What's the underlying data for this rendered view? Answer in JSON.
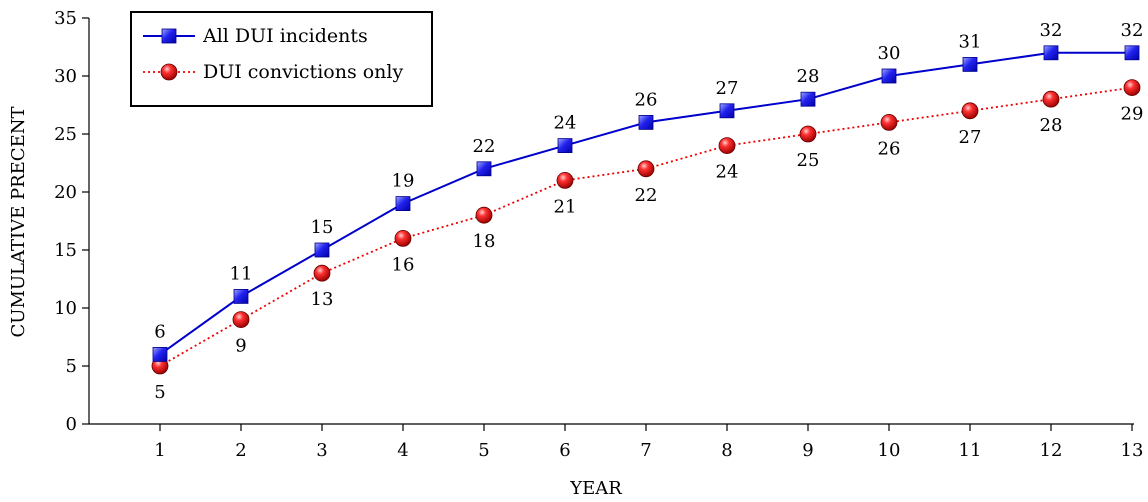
{
  "chart_data": {
    "type": "line",
    "xlabel": "YEAR",
    "ylabel": "CUMULATIVE PRECENT",
    "x": [
      1,
      2,
      3,
      4,
      5,
      6,
      7,
      8,
      9,
      10,
      11,
      12,
      13
    ],
    "ylim": [
      0,
      35
    ],
    "yticks": [
      0,
      5,
      10,
      15,
      20,
      25,
      30,
      35
    ],
    "grid": false,
    "legend_position": "top-left",
    "series": [
      {
        "name": "All DUI incidents",
        "values": [
          6,
          11,
          15,
          19,
          22,
          24,
          26,
          27,
          28,
          30,
          31,
          32,
          32
        ],
        "color": "#0000cc",
        "marker_color": "#1a1ae6",
        "line_style": "solid",
        "marker": "square",
        "label_position": "above"
      },
      {
        "name": "DUI convictions only",
        "values": [
          5,
          9,
          13,
          16,
          18,
          21,
          22,
          24,
          25,
          26,
          27,
          28,
          29
        ],
        "color": "#ee0000",
        "marker_color": "#dd0000",
        "line_style": "dotted",
        "marker": "circle",
        "label_position": "below"
      }
    ]
  }
}
